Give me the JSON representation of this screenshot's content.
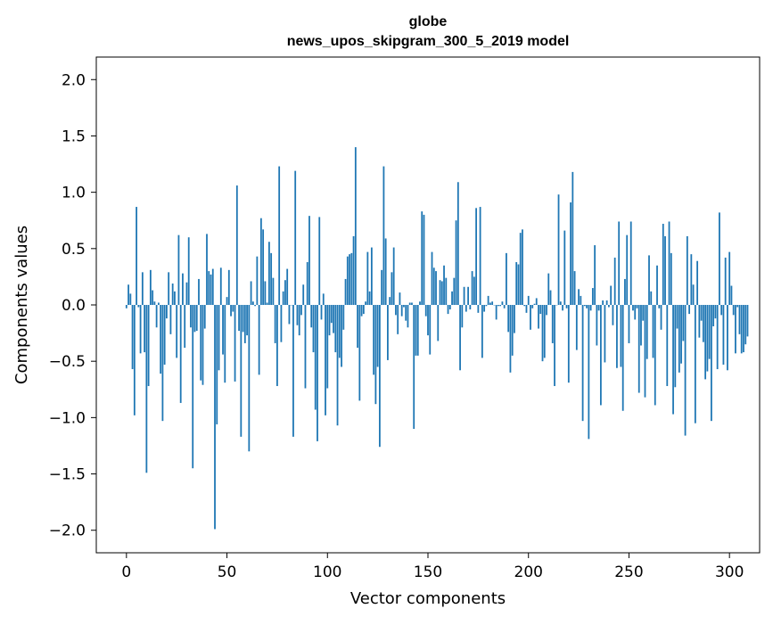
{
  "chart_data": {
    "type": "bar",
    "title_line1": "globe",
    "title_line2": "news_upos_skipgram_300_5_2019 model",
    "xlabel": "Vector components",
    "ylabel": "Components values",
    "xlim": [
      -15,
      315
    ],
    "ylim": [
      -2.2,
      2.2
    ],
    "xticks": [
      0,
      50,
      100,
      150,
      200,
      250,
      300
    ],
    "yticks": [
      -2.0,
      -1.5,
      -1.0,
      -0.5,
      0.0,
      0.5,
      1.0,
      1.5,
      2.0
    ],
    "ytick_labels": [
      "−2.0",
      "−1.5",
      "−1.0",
      "−0.5",
      "0.0",
      "0.5",
      "1.0",
      "1.5",
      "2.0"
    ],
    "bar_color": "#1f77b4",
    "values": [
      -0.03,
      0.18,
      0.1,
      -0.57,
      -0.98,
      0.87,
      -0.02,
      -0.43,
      0.29,
      -0.42,
      -1.49,
      -0.72,
      0.31,
      0.13,
      0.03,
      -0.2,
      0.02,
      -0.61,
      -1.03,
      -0.53,
      -0.12,
      0.29,
      -0.26,
      0.19,
      0.12,
      -0.47,
      0.62,
      -0.87,
      0.28,
      -0.38,
      0.2,
      0.6,
      -0.2,
      -1.45,
      -0.24,
      -0.23,
      0.23,
      -0.67,
      -0.71,
      -0.21,
      0.63,
      0.3,
      0.27,
      0.32,
      -1.99,
      -1.06,
      -0.58,
      0.33,
      -0.44,
      -0.69,
      0.07,
      0.31,
      -0.1,
      -0.06,
      -0.68,
      1.06,
      -0.23,
      -1.17,
      -0.24,
      -0.34,
      -0.27,
      -1.3,
      0.21,
      0.03,
      -0.01,
      0.43,
      -0.62,
      0.77,
      0.67,
      0.21,
      0.02,
      0.56,
      0.46,
      0.24,
      -0.34,
      -0.72,
      1.23,
      -0.33,
      0.12,
      0.22,
      0.32,
      -0.17,
      0.0,
      -1.17,
      1.19,
      -0.18,
      -0.27,
      -0.09,
      0.18,
      -0.74,
      0.38,
      0.79,
      -0.2,
      -0.42,
      -0.93,
      -1.21,
      0.78,
      -0.13,
      0.1,
      -0.98,
      -0.74,
      -0.27,
      -0.16,
      -0.25,
      -0.42,
      -1.07,
      -0.47,
      -0.55,
      -0.22,
      0.23,
      0.43,
      0.45,
      0.46,
      0.61,
      1.4,
      -0.38,
      -0.85,
      -0.1,
      -0.08,
      0.03,
      0.47,
      0.12,
      0.51,
      -0.62,
      -0.88,
      -0.55,
      -1.26,
      0.31,
      1.23,
      0.59,
      -0.49,
      0.07,
      0.29,
      0.51,
      -0.09,
      -0.26,
      0.11,
      -0.1,
      -0.02,
      -0.14,
      -0.2,
      0.02,
      0.02,
      -1.1,
      -0.45,
      -0.45,
      0.03,
      0.83,
      0.8,
      -0.1,
      -0.27,
      -0.44,
      0.47,
      0.33,
      0.3,
      -0.32,
      0.22,
      0.21,
      0.35,
      0.24,
      -0.08,
      -0.04,
      0.12,
      0.24,
      0.75,
      1.09,
      -0.58,
      -0.2,
      0.16,
      -0.06,
      0.16,
      -0.04,
      0.3,
      0.25,
      0.86,
      -0.07,
      0.87,
      -0.47,
      -0.06,
      -0.01,
      0.08,
      0.02,
      0.03,
      0.0,
      -0.13,
      -0.01,
      -0.01,
      0.03,
      -0.03,
      0.46,
      -0.24,
      -0.6,
      -0.45,
      -0.25,
      0.38,
      0.36,
      0.64,
      0.67,
      -0.01,
      -0.07,
      0.08,
      -0.22,
      -0.03,
      0.01,
      0.06,
      -0.21,
      -0.08,
      -0.5,
      -0.47,
      -0.09,
      0.28,
      0.13,
      -0.34,
      -0.72,
      0.0,
      0.98,
      0.03,
      -0.05,
      0.66,
      -0.03,
      -0.69,
      0.91,
      1.18,
      0.3,
      -0.4,
      0.14,
      0.08,
      -1.03,
      -0.01,
      -0.03,
      -1.19,
      -0.05,
      0.15,
      0.53,
      -0.36,
      -0.05,
      -0.89,
      0.04,
      -0.51,
      0.04,
      -0.02,
      0.17,
      -0.18,
      0.42,
      -0.56,
      0.74,
      -0.55,
      -0.94,
      0.23,
      0.62,
      -0.34,
      0.74,
      -0.05,
      -0.13,
      -0.03,
      -0.78,
      -0.36,
      -0.14,
      -0.82,
      -0.48,
      0.44,
      0.12,
      -0.47,
      -0.89,
      0.35,
      -0.03,
      -0.22,
      0.72,
      0.61,
      -0.72,
      0.74,
      0.46,
      -0.97,
      -0.73,
      -0.21,
      -0.6,
      -0.52,
      -0.32,
      -1.16,
      0.61,
      -0.08,
      0.45,
      0.18,
      -1.05,
      0.39,
      -0.29,
      -0.14,
      -0.33,
      -0.66,
      -0.59,
      -0.48,
      -1.03,
      -0.19,
      -0.12,
      -0.57,
      0.82,
      -0.09,
      -0.53,
      0.42,
      -0.58,
      0.47,
      0.17,
      -0.09,
      -0.43,
      -0.02,
      -0.26,
      -0.43,
      -0.42,
      -0.35,
      -0.28
    ]
  }
}
